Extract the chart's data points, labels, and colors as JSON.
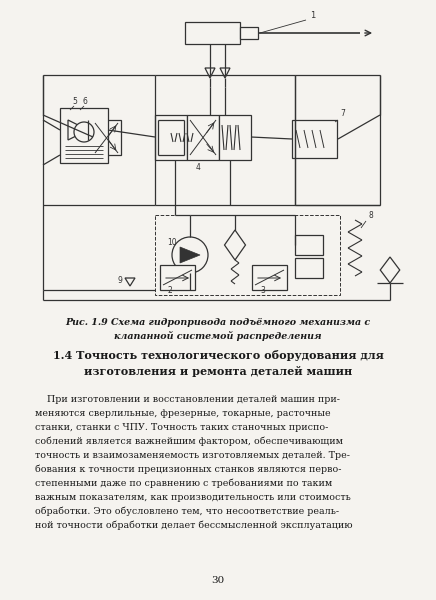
{
  "bg_color": "#f5f3ef",
  "fig_caption": "Рис. 1.9 Схема гидропривода подъёмного механизма с\nклапанной системой распределения",
  "section_title": "1.4 Точность технологического оборудования для\nизготовления и ремонта деталей машин",
  "paragraph_lines": [
    "    При изготовлении и восстановлении деталей машин при-",
    "меняются сверлильные, фрезерные, токарные, расточные",
    "станки, станки с ЧПУ. Точность таких станочных приспо-",
    "соблений является важнейшим фактором, обеспечивающим",
    "точность и взаимозаменяемость изготовляемых деталей. Тре-",
    "бования к точности прецизионных станков являются перво-",
    "степенными даже по сравнению с требованиями по таким",
    "важным показателям, как производительность или стоимость",
    "обработки. Это обусловлено тем, что несоответствие реаль-",
    "ной точности обработки делает бессмысленной эксплуатацию"
  ],
  "page_number": "30",
  "text_color": "#1a1a1a",
  "line_color": "#333333"
}
